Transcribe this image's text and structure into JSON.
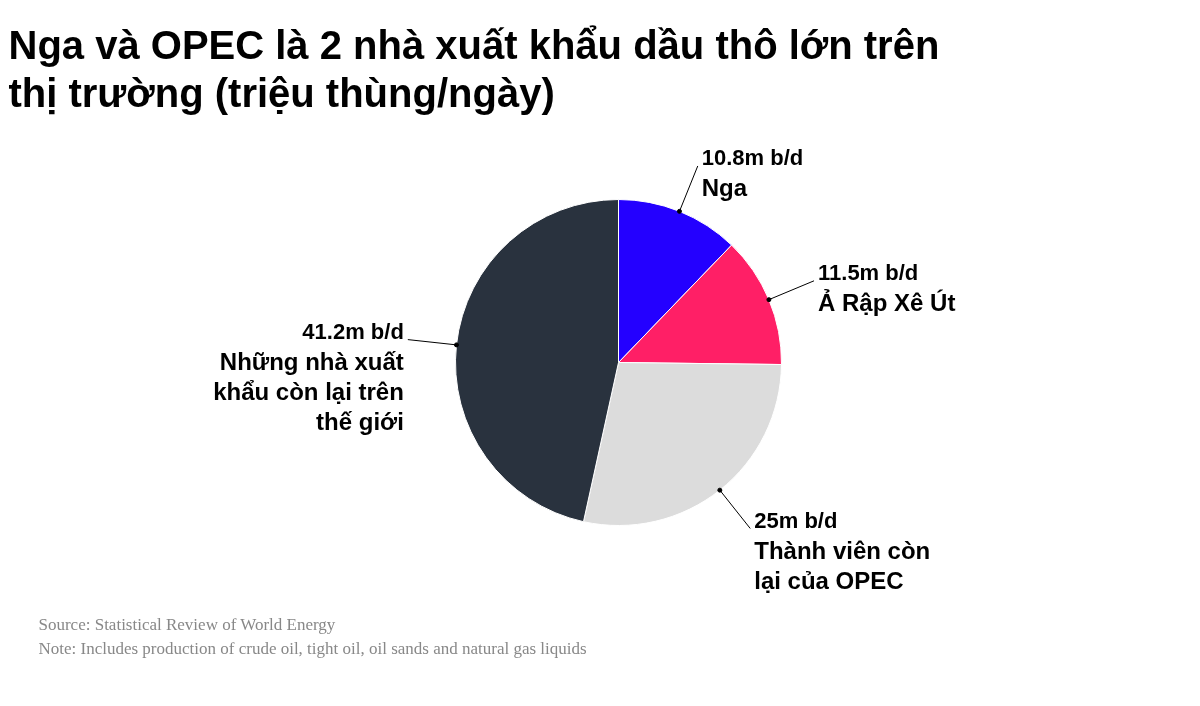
{
  "chart_data": {
    "type": "pie",
    "title": "Nga và OPEC là 2 nhà xuất khẩu dầu thô lớn trên thị trường (triệu thùng/ngày)",
    "categories": [
      "Nga",
      "Ả Rập Xê Út",
      "Thành viên còn lại của OPEC",
      "Những nhà xuất khẩu còn lại trên thế giới"
    ],
    "values": [
      10.8,
      11.5,
      25,
      41.2
    ],
    "colors": [
      "#2400ff",
      "#ff1f66",
      "#dcdcdc",
      "#29323e"
    ],
    "value_labels": [
      "10.8m b/d",
      "11.5m b/d",
      "25m b/d",
      "41.2m b/d"
    ],
    "annotations": [
      "Source: Statistical Review of World Energy",
      "Note: Includes production of crude oil, tight oil, oil sands and natural gas liquids"
    ]
  }
}
